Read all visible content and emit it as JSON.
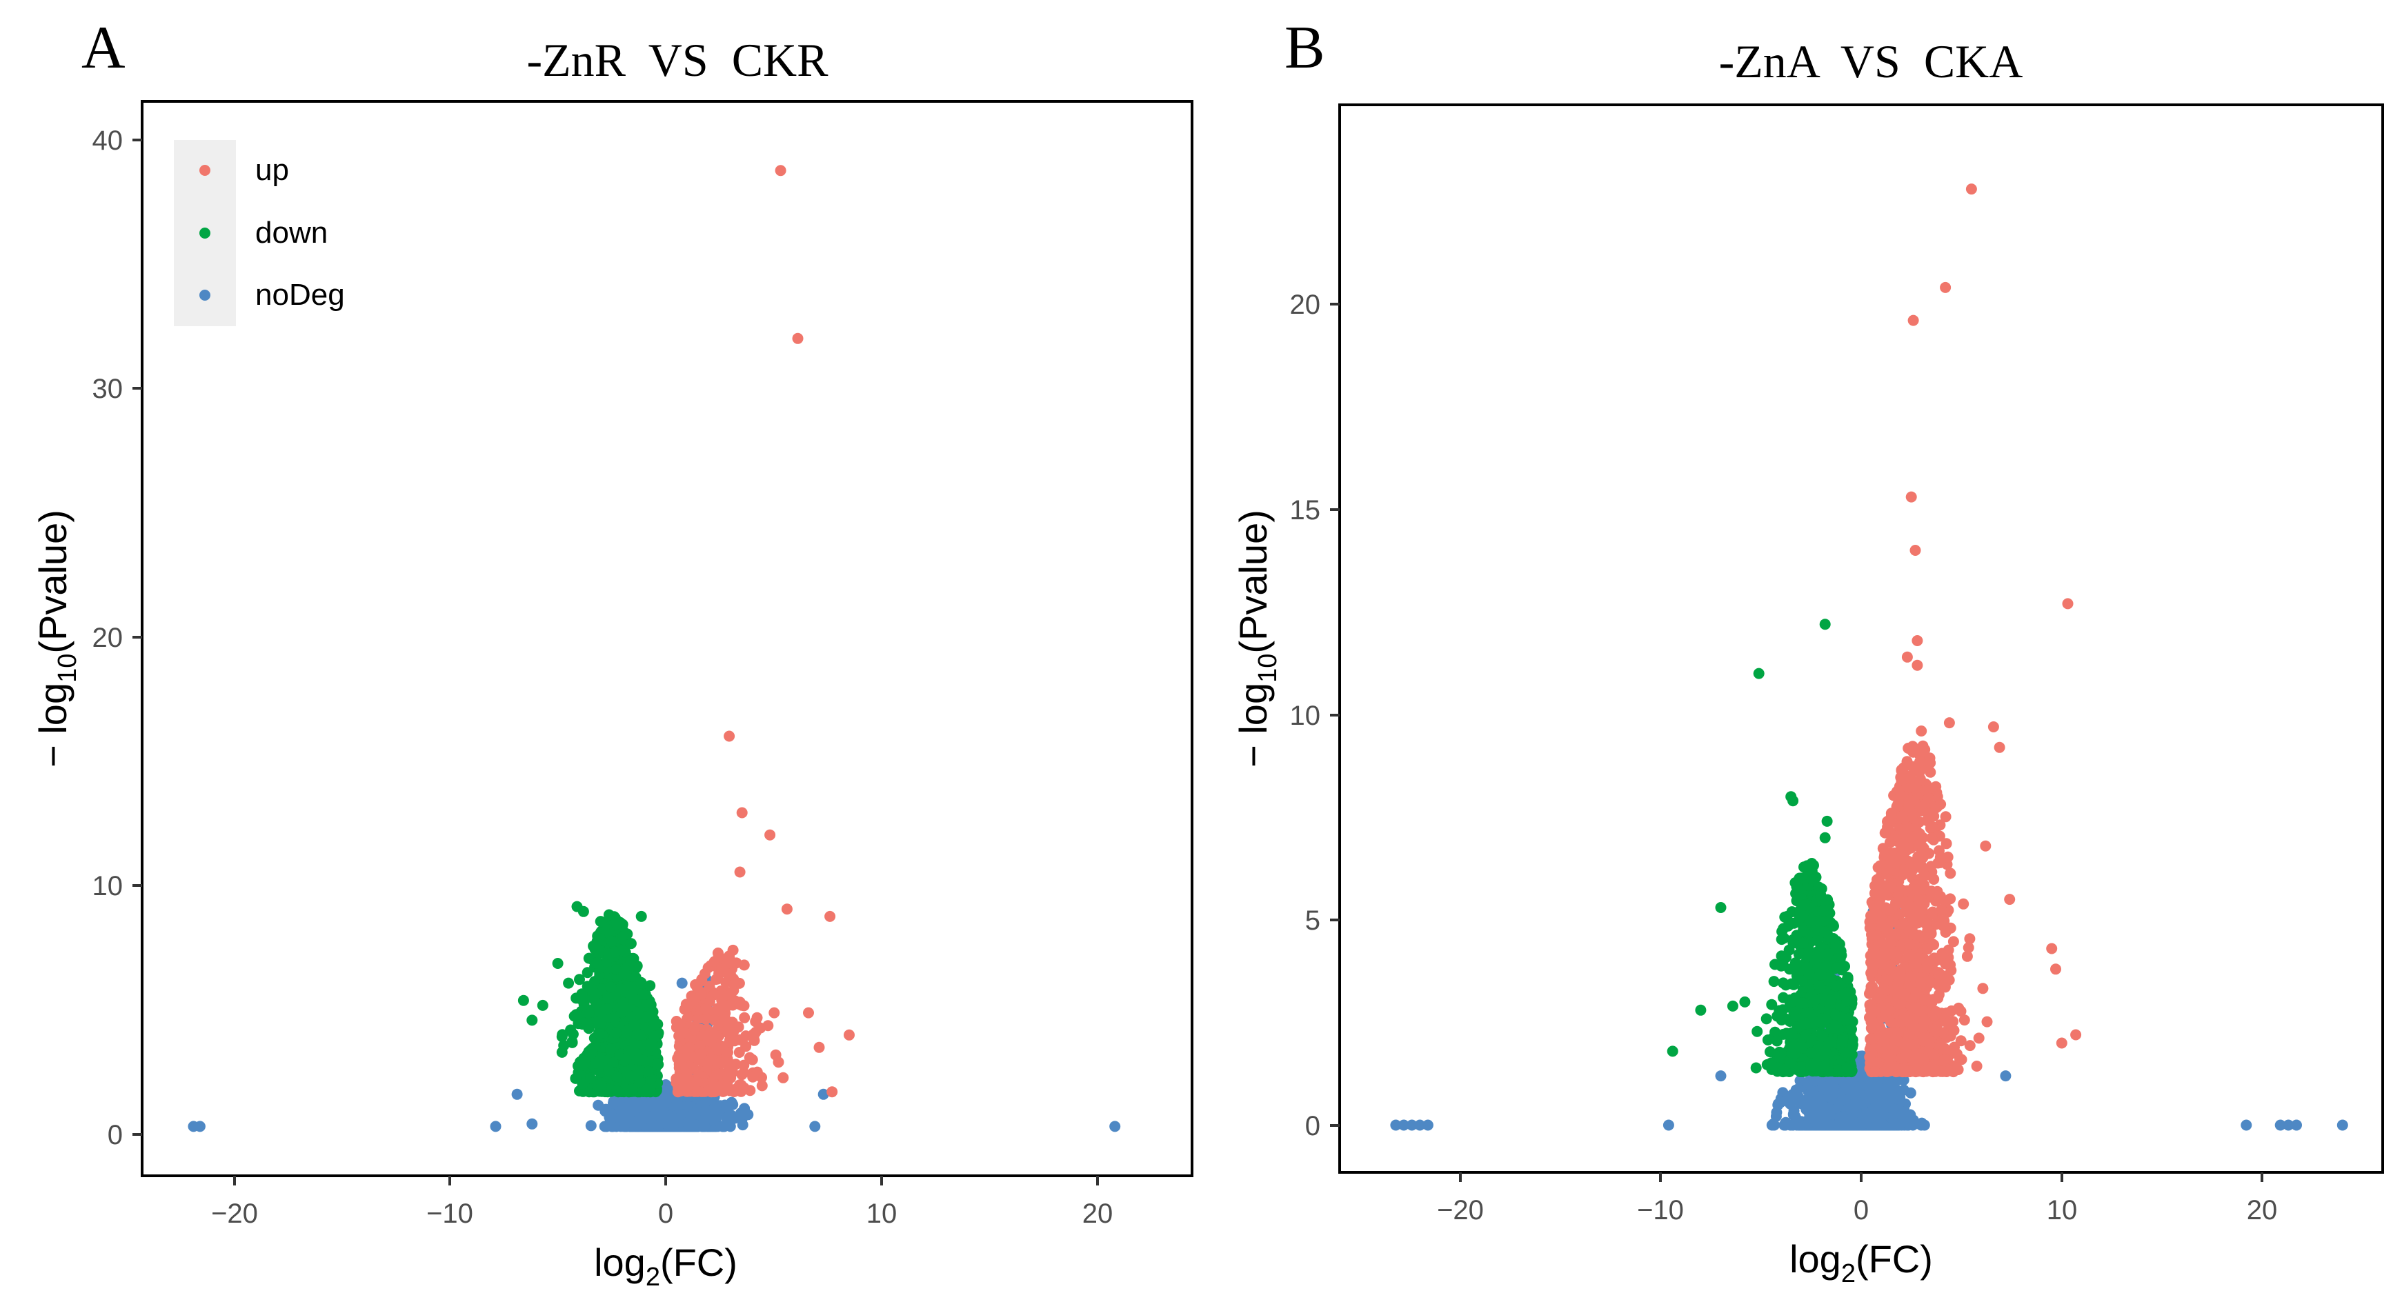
{
  "figure": {
    "panels": [
      {
        "letter": "A",
        "title": "-ZnR  VS  CKR"
      },
      {
        "letter": "B",
        "title": "-ZnA  VS  CKA"
      }
    ]
  },
  "colors": {
    "up": "#F0766B",
    "down": "#00A543",
    "noDeg": "#4E88C4",
    "legend_bg": "#EFEFEF",
    "axis": "#000000",
    "tick_text": "#4D4D4D"
  },
  "chart_data": [
    {
      "type": "scatter",
      "title": "-ZnR  VS  CKR",
      "xlabel": "log2(FC)",
      "ylabel": "−log10(Pvalue)",
      "xlim": [
        -24.5,
        24.5
      ],
      "ylim": [
        -2.0,
        41.5
      ],
      "xticks": [
        -20,
        -10,
        0,
        10,
        20
      ],
      "xtick_labels": [
        "−20",
        "−10",
        "0",
        "10",
        "20"
      ],
      "yticks": [
        0,
        10,
        20,
        30,
        40
      ],
      "ytick_labels": [
        "0",
        "10",
        "20",
        "30",
        "40"
      ],
      "grid": false,
      "legend": {
        "position": "top-left",
        "entries": [
          "up",
          "down",
          "noDeg"
        ]
      },
      "series": [
        {
          "name": "up",
          "points": [
            [
              5.3,
              38.7
            ],
            [
              6.1,
              31.9
            ],
            [
              2.9,
              15.8
            ],
            [
              3.5,
              12.7
            ],
            [
              4.8,
              11.8
            ],
            [
              3.4,
              10.3
            ],
            [
              7.6,
              8.5
            ],
            [
              5.6,
              8.8
            ],
            [
              8.5,
              3.7
            ],
            [
              6.6,
              4.6
            ],
            [
              7.1,
              3.2
            ],
            [
              7.7,
              1.4
            ],
            [
              2.9,
              6.9
            ],
            [
              3.1,
              5.5
            ],
            [
              4.2,
              4.4
            ],
            [
              5.0,
              4.6
            ],
            [
              5.2,
              2.6
            ],
            [
              4.0,
              2.0
            ],
            [
              1.4,
              1.8
            ]
          ]
        },
        {
          "name": "down",
          "points": [
            [
              -4.2,
              8.9
            ],
            [
              -3.9,
              8.7
            ],
            [
              -3.1,
              8.3
            ],
            [
              -1.2,
              8.5
            ],
            [
              -5.1,
              6.6
            ],
            [
              -6.3,
              4.3
            ],
            [
              -6.7,
              5.1
            ],
            [
              -2.6,
              7.5
            ],
            [
              -2.0,
              7.1
            ],
            [
              -5.8,
              4.9
            ],
            [
              -4.6,
              5.8
            ],
            [
              -1.7,
              6.7
            ],
            [
              -0.8,
              5.7
            ],
            [
              -0.6,
              3.6
            ]
          ]
        },
        {
          "name": "noDeg",
          "points": [
            [
              -22.1,
              0.0
            ],
            [
              -21.8,
              0.0
            ],
            [
              -8.0,
              0.0
            ],
            [
              -6.3,
              0.1
            ],
            [
              6.9,
              0.0
            ],
            [
              20.9,
              0.0
            ],
            [
              -7.0,
              1.3
            ],
            [
              7.3,
              1.3
            ],
            [
              0.7,
              5.8
            ]
          ]
        }
      ],
      "clusters": [
        {
          "series": "noDeg",
          "x_range": [
            -7.5,
            7.5
          ],
          "y_range": [
            0.0,
            1.7
          ],
          "n": 950,
          "shape": "flat"
        },
        {
          "series": "noDeg",
          "x_range": [
            -1.9,
            1.9
          ],
          "y_range": [
            0.0,
            6.0
          ],
          "n": 260,
          "shape": "vshape"
        },
        {
          "series": "down",
          "x_range": [
            -6.8,
            -0.4
          ],
          "y_range": [
            1.4,
            8.6
          ],
          "n": 1000,
          "shape": "funnel_left"
        },
        {
          "series": "up",
          "x_range": [
            0.4,
            6.8
          ],
          "y_range": [
            1.4,
            7.2
          ],
          "n": 360,
          "shape": "funnel_right"
        }
      ]
    },
    {
      "type": "scatter",
      "title": "-ZnA  VS  CKA",
      "xlabel": "log2(FC)",
      "ylabel": "−log10(Pvalue)",
      "xlim": [
        -26.0,
        26.0
      ],
      "ylim": [
        -1.15,
        24.85
      ],
      "xticks": [
        -20,
        -10,
        0,
        10,
        20
      ],
      "xtick_labels": [
        "−20",
        "−10",
        "0",
        "10",
        "20"
      ],
      "yticks": [
        0,
        5,
        10,
        15,
        20
      ],
      "ytick_labels": [
        "0",
        "5",
        "10",
        "15",
        "20"
      ],
      "grid": false,
      "legend": null,
      "series": [
        {
          "name": "up",
          "points": [
            [
              5.5,
              22.8
            ],
            [
              4.2,
              20.4
            ],
            [
              2.6,
              19.6
            ],
            [
              2.5,
              15.3
            ],
            [
              2.7,
              14.0
            ],
            [
              10.3,
              12.7
            ],
            [
              2.8,
              11.8
            ],
            [
              2.3,
              11.4
            ],
            [
              2.8,
              11.2
            ],
            [
              3.0,
              9.6
            ],
            [
              4.4,
              9.8
            ],
            [
              6.6,
              9.7
            ],
            [
              6.9,
              9.2
            ],
            [
              9.5,
              4.3
            ],
            [
              9.7,
              3.8
            ],
            [
              10.7,
              2.2
            ],
            [
              10.0,
              2.0
            ],
            [
              7.4,
              5.5
            ],
            [
              6.2,
              6.8
            ]
          ]
        },
        {
          "name": "down",
          "points": [
            [
              -1.8,
              12.2
            ],
            [
              -5.1,
              11.0
            ],
            [
              -3.5,
              8.0
            ],
            [
              -3.4,
              7.9
            ],
            [
              -1.7,
              7.4
            ],
            [
              -1.8,
              7.0
            ],
            [
              -7.0,
              5.3
            ],
            [
              -9.4,
              1.8
            ],
            [
              -6.4,
              2.9
            ],
            [
              -8.0,
              2.8
            ],
            [
              -5.8,
              3.0
            ]
          ]
        },
        {
          "name": "noDeg",
          "points": [
            [
              -23.2,
              0.0
            ],
            [
              -22.8,
              0.0
            ],
            [
              -22.4,
              0.0
            ],
            [
              -22.0,
              0.0
            ],
            [
              -21.6,
              0.0
            ],
            [
              -9.6,
              0.0
            ],
            [
              19.2,
              0.0
            ],
            [
              20.9,
              0.0
            ],
            [
              21.3,
              0.0
            ],
            [
              21.7,
              0.0
            ],
            [
              24.0,
              0.0
            ],
            [
              7.2,
              1.2
            ],
            [
              -7.0,
              1.2
            ],
            [
              0.6,
              5.2
            ]
          ]
        }
      ],
      "clusters": [
        {
          "series": "noDeg",
          "x_range": [
            -8.6,
            7.4
          ],
          "y_range": [
            0.0,
            1.7
          ],
          "n": 1100,
          "shape": "flat"
        },
        {
          "series": "noDeg",
          "x_range": [
            -1.9,
            1.9
          ],
          "y_range": [
            0.0,
            5.6
          ],
          "n": 260,
          "shape": "vshape"
        },
        {
          "series": "down",
          "x_range": [
            -7.0,
            -0.4
          ],
          "y_range": [
            1.3,
            6.4
          ],
          "n": 800,
          "shape": "funnel_left"
        },
        {
          "series": "up",
          "x_range": [
            0.4,
            7.6
          ],
          "y_range": [
            1.3,
            9.4
          ],
          "n": 1200,
          "shape": "funnel_right"
        }
      ]
    }
  ]
}
